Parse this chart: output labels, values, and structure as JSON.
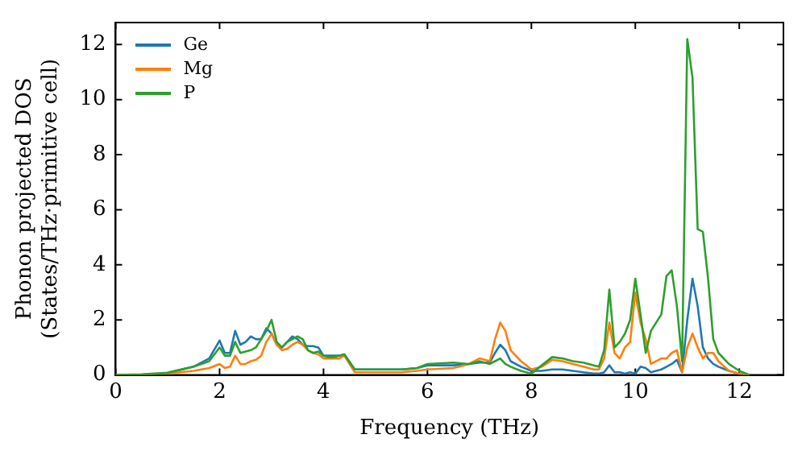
{
  "chart_data": {
    "type": "line",
    "xlabel": "Frequency (THz)",
    "ylabel": "Phonon projected DOS\n(States/THz·primitive cell)",
    "x": [
      0,
      0.5,
      1,
      1.5,
      1.8,
      2.0,
      2.1,
      2.2,
      2.3,
      2.4,
      2.5,
      2.6,
      2.7,
      2.8,
      2.9,
      3.0,
      3.1,
      3.2,
      3.3,
      3.4,
      3.5,
      3.6,
      3.7,
      3.8,
      3.9,
      4.0,
      4.1,
      4.2,
      4.3,
      4.4,
      4.6,
      5,
      5.5,
      5.8,
      6,
      6.5,
      6.8,
      7.0,
      7.2,
      7.3,
      7.4,
      7.5,
      7.6,
      7.8,
      8,
      8.2,
      8.4,
      8.6,
      8.8,
      9,
      9.2,
      9.3,
      9.4,
      9.5,
      9.6,
      9.7,
      9.8,
      9.9,
      10.0,
      10.1,
      10.2,
      10.3,
      10.5,
      10.6,
      10.7,
      10.8,
      10.9,
      11.0,
      11.1,
      11.2,
      11.3,
      11.4,
      11.5,
      11.6,
      11.8,
      12,
      12.2
    ],
    "series": [
      {
        "name": "Ge",
        "color": "#1f77b4",
        "values": [
          null,
          null,
          0.08,
          0.3,
          0.6,
          1.25,
          0.8,
          0.8,
          1.6,
          1.1,
          1.2,
          1.4,
          1.3,
          1.3,
          1.7,
          1.5,
          1.1,
          1.0,
          1.2,
          1.4,
          1.3,
          1.1,
          1.05,
          1.05,
          1.0,
          0.7,
          0.7,
          0.7,
          0.7,
          0.75,
          0.2,
          0.2,
          0.2,
          0.25,
          0.35,
          0.35,
          0.4,
          0.45,
          0.45,
          0.8,
          1.1,
          0.9,
          0.5,
          0.3,
          0.15,
          0.15,
          0.2,
          0.2,
          0.15,
          0.1,
          0.05,
          0.05,
          0.1,
          0.35,
          0.1,
          0.1,
          0.05,
          0.1,
          0.05,
          0.3,
          0.25,
          0.1,
          0.2,
          0.3,
          0.4,
          0.55,
          0.1,
          2.0,
          3.5,
          2.5,
          1.0,
          0.6,
          0.4,
          0.3,
          0.15,
          0.05,
          0
        ]
      },
      {
        "name": "Mg",
        "color": "#ff7f0e",
        "values": [
          0,
          0.01,
          0.05,
          0.15,
          0.25,
          0.4,
          0.25,
          0.3,
          0.7,
          0.4,
          0.4,
          0.5,
          0.55,
          0.7,
          1.2,
          1.5,
          1.1,
          0.9,
          0.95,
          1.1,
          1.2,
          1.1,
          0.9,
          0.8,
          0.75,
          0.6,
          0.6,
          0.6,
          0.6,
          0.7,
          0.1,
          0.1,
          0.1,
          0.15,
          0.2,
          0.25,
          0.4,
          0.6,
          0.5,
          1.3,
          1.9,
          1.6,
          0.9,
          0.5,
          0.2,
          0.3,
          0.55,
          0.5,
          0.4,
          0.3,
          0.2,
          0.2,
          0.6,
          1.9,
          0.8,
          0.6,
          1.0,
          1.2,
          3.0,
          1.9,
          1.3,
          0.4,
          0.6,
          0.6,
          0.8,
          0.9,
          0.1,
          1.0,
          1.5,
          1.0,
          0.6,
          0.8,
          0.8,
          0.5,
          0.15,
          0.05,
          0
        ]
      },
      {
        "name": "P",
        "color": "#2ca02c",
        "values": [
          0,
          0.02,
          0.08,
          0.3,
          0.5,
          1.0,
          0.7,
          0.7,
          1.2,
          0.8,
          0.85,
          0.9,
          1.0,
          1.3,
          1.6,
          2.0,
          1.2,
          1.0,
          1.2,
          1.3,
          1.4,
          1.3,
          0.9,
          0.8,
          0.85,
          0.7,
          0.65,
          0.65,
          0.7,
          0.75,
          0.2,
          0.2,
          0.2,
          0.25,
          0.4,
          0.45,
          0.4,
          0.5,
          0.4,
          0.5,
          0.6,
          0.4,
          0.3,
          0.15,
          0.05,
          0.35,
          0.65,
          0.6,
          0.5,
          0.45,
          0.35,
          0.3,
          0.9,
          3.1,
          1.0,
          1.2,
          1.5,
          2.0,
          3.5,
          2.2,
          0.8,
          1.6,
          2.2,
          3.6,
          3.8,
          2.5,
          0.5,
          12.2,
          10.8,
          5.3,
          5.2,
          3.5,
          1.3,
          0.8,
          0.4,
          0.15,
          0
        ]
      }
    ],
    "xlim": [
      0,
      12.85
    ],
    "xticks": [
      0,
      2,
      4,
      6,
      8,
      10,
      12
    ],
    "ylim": [
      0,
      12.8
    ],
    "yticks": [
      0,
      2,
      4,
      6,
      8,
      10,
      12
    ],
    "legend": "top left",
    "grid": false,
    "marker": "none",
    "line_style": "solid"
  }
}
